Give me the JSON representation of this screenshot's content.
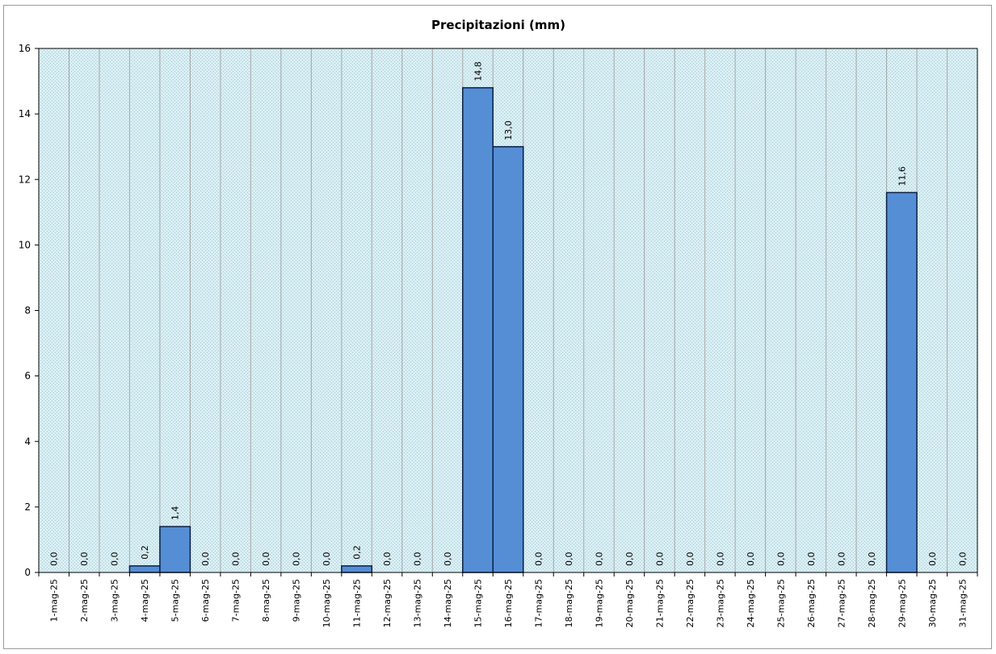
{
  "chart_data": {
    "type": "bar",
    "title": "Precipitazioni  (mm)",
    "xlabel": "",
    "ylabel": "",
    "ylim": [
      0,
      16
    ],
    "yticks": [
      0,
      2,
      4,
      6,
      8,
      10,
      12,
      14,
      16
    ],
    "grid": "vertical",
    "legend": "none",
    "colors": {
      "bar_fill": "#558ed5",
      "bar_stroke": "#0a1f44",
      "plot_background": "#d9eef3",
      "gridline": "#a6a6a6",
      "axis": "#000000"
    },
    "categories": [
      "1-mag-25",
      "2-mag-25",
      "3-mag-25",
      "4-mag-25",
      "5-mag-25",
      "6-mag-25",
      "7-mag-25",
      "8-mag-25",
      "9-mag-25",
      "10-mag-25",
      "11-mag-25",
      "12-mag-25",
      "13-mag-25",
      "14-mag-25",
      "15-mag-25",
      "16-mag-25",
      "17-mag-25",
      "18-mag-25",
      "19-mag-25",
      "20-mag-25",
      "21-mag-25",
      "22-mag-25",
      "23-mag-25",
      "24-mag-25",
      "25-mag-25",
      "26-mag-25",
      "27-mag-25",
      "28-mag-25",
      "29-mag-25",
      "30-mag-25",
      "31-mag-25"
    ],
    "values": [
      0.0,
      0.0,
      0.0,
      0.2,
      1.4,
      0.0,
      0.0,
      0.0,
      0.0,
      0.0,
      0.2,
      0.0,
      0.0,
      0.0,
      14.8,
      13.0,
      0.0,
      0.0,
      0.0,
      0.0,
      0.0,
      0.0,
      0.0,
      0.0,
      0.0,
      0.0,
      0.0,
      0.0,
      11.6,
      0.0,
      0.0
    ],
    "data_labels": [
      "0,0",
      "0,0",
      "0,0",
      "0,2",
      "1,4",
      "0,0",
      "0,0",
      "0,0",
      "0,0",
      "0,0",
      "0,2",
      "0,0",
      "0,0",
      "0,0",
      "14,8",
      "13,0",
      "0,0",
      "0,0",
      "0,0",
      "0,0",
      "0,0",
      "0,0",
      "0,0",
      "0,0",
      "0,0",
      "0,0",
      "0,0",
      "0,0",
      "11,6",
      "0,0",
      "0,0"
    ]
  }
}
